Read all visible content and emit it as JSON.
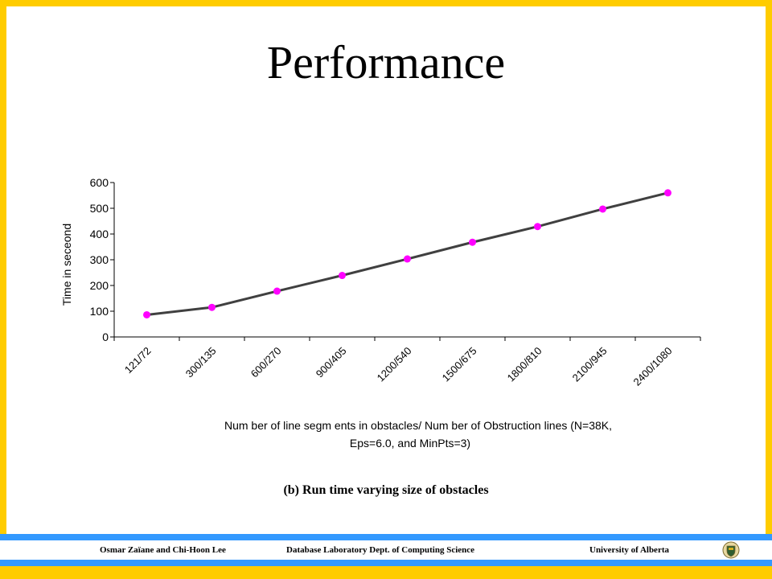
{
  "slide": {
    "title": "Performance",
    "caption": "(b) Run time varying size of obstacles"
  },
  "footer": {
    "authors": "Osmar Zaïane and Chi-Hoon Lee",
    "department": "Database Laboratory  Dept. of Computing Science",
    "university": "University of Alberta",
    "logo_icon": "university-seal-icon"
  },
  "colors": {
    "frame": "#ffcc00",
    "stripe": "#3399ff",
    "line": "#404040",
    "marker": "#ff00ff"
  },
  "chart_data": {
    "type": "line",
    "title": "",
    "categories": [
      "121/72",
      "300/135",
      "600/270",
      "900/405",
      "1200/540",
      "1500/675",
      "1800/810",
      "2100/945",
      "2400/1080"
    ],
    "series": [
      {
        "values": [
          86,
          115,
          178,
          239,
          303,
          368,
          429,
          497,
          560
        ]
      }
    ],
    "ylabel": "Time in seceond",
    "xlabel_lines": [
      "Num ber of line segm ents in obstacles/ Num ber of Obstruction lines (N=38K,",
      "Eps=6.0, and MinPts=3)"
    ],
    "ylim": [
      0,
      600
    ],
    "yticks": [
      0,
      100,
      200,
      300,
      400,
      500,
      600
    ],
    "grid": false,
    "legend": "none"
  }
}
